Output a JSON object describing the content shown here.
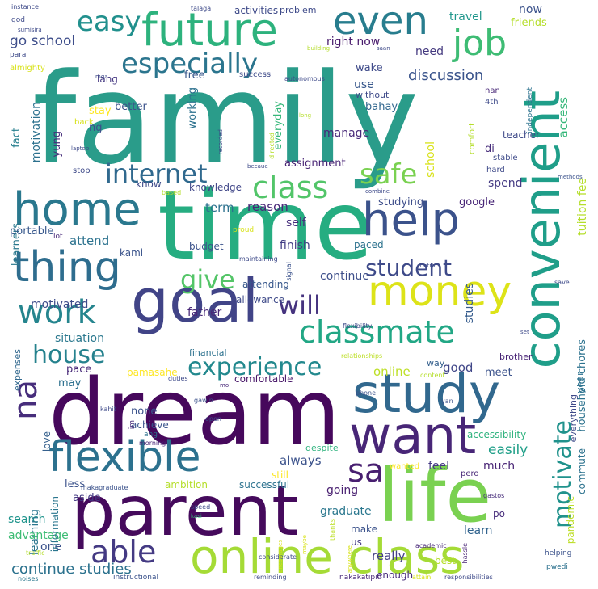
{
  "words": [
    {
      "text": "family",
      "color": "#2a9c8a"
    },
    {
      "text": "time",
      "color": "#26ad81"
    },
    {
      "text": "dream",
      "color": "#46085c"
    },
    {
      "text": "parent",
      "color": "#450a5c"
    },
    {
      "text": "life",
      "color": "#7ad151"
    },
    {
      "text": "goal",
      "color": "#414487"
    },
    {
      "text": "online class",
      "color": "#a5db36"
    },
    {
      "text": "study",
      "color": "#31688e"
    },
    {
      "text": "convenient",
      "color": "#1f9e89"
    },
    {
      "text": "want",
      "color": "#482677"
    },
    {
      "text": "flexible",
      "color": "#2c718e"
    },
    {
      "text": "future",
      "color": "#2db27d"
    },
    {
      "text": "home",
      "color": "#2a788e"
    },
    {
      "text": "help",
      "color": "#3b528b"
    },
    {
      "text": "thing",
      "color": "#2e6d8e"
    },
    {
      "text": "money",
      "color": "#dde318"
    },
    {
      "text": "even",
      "color": "#287d8e"
    },
    {
      "text": "classmate",
      "color": "#22a785"
    },
    {
      "text": "work",
      "color": "#25858e"
    },
    {
      "text": "job",
      "color": "#3ebc74"
    },
    {
      "text": "sa",
      "color": "#481f70"
    },
    {
      "text": "na",
      "color": "#472d7b"
    },
    {
      "text": "able",
      "color": "#443a83"
    },
    {
      "text": "especially",
      "color": "#2b758e"
    },
    {
      "text": "internet",
      "color": "#30698e"
    },
    {
      "text": "safe",
      "color": "#7ad151"
    },
    {
      "text": "class",
      "color": "#52c569"
    },
    {
      "text": "easy",
      "color": "#21908d"
    },
    {
      "text": "house",
      "color": "#26828e"
    },
    {
      "text": "experience",
      "color": "#23898e"
    },
    {
      "text": "motivate",
      "color": "#20928c"
    },
    {
      "text": "student",
      "color": "#3e4a89"
    },
    {
      "text": "give",
      "color": "#54c568"
    },
    {
      "text": "will",
      "color": "#46337f"
    },
    {
      "text": "continue studies",
      "color": "#2c728e"
    },
    {
      "text": "discussion",
      "color": "#3a548c"
    },
    {
      "text": "go school",
      "color": "#3d4d8a"
    },
    {
      "text": "travel",
      "color": "#1f968b"
    },
    {
      "text": "friends",
      "color": "#b5de2b"
    },
    {
      "text": "right now",
      "color": "#481a6c"
    },
    {
      "text": "need",
      "color": "#44397f"
    },
    {
      "text": "now",
      "color": "#3b528b"
    },
    {
      "text": "access",
      "color": "#35b779"
    },
    {
      "text": "manage",
      "color": "#482979"
    },
    {
      "text": "household chores",
      "color": "#2c728e"
    },
    {
      "text": "tuition fee",
      "color": "#b5de2b"
    },
    {
      "text": "easily",
      "color": "#1f9f88"
    },
    {
      "text": "really",
      "color": "#433e85"
    },
    {
      "text": "search",
      "color": "#1f948c"
    },
    {
      "text": "learning",
      "color": "#2a768e"
    },
    {
      "text": "always",
      "color": "#3b528b"
    },
    {
      "text": "attend",
      "color": "#2c728e"
    },
    {
      "text": "motivated",
      "color": "#3e4c8a"
    },
    {
      "text": "situation",
      "color": "#2a788e"
    },
    {
      "text": "term",
      "color": "#2c718e"
    },
    {
      "text": "reason",
      "color": "#482878"
    },
    {
      "text": "online",
      "color": "#bddf26"
    },
    {
      "text": "good",
      "color": "#404688"
    },
    {
      "text": "advantage",
      "color": "#3dbc74"
    },
    {
      "text": "graduate",
      "color": "#2a778e"
    },
    {
      "text": "learn",
      "color": "#32648e"
    },
    {
      "text": "one",
      "color": "#3b528b"
    },
    {
      "text": "going",
      "color": "#481f70"
    },
    {
      "text": "feel",
      "color": "#443983"
    },
    {
      "text": "much",
      "color": "#482475"
    },
    {
      "text": "studies",
      "color": "#365c8d"
    },
    {
      "text": "school",
      "color": "#d8e219"
    },
    {
      "text": "finish",
      "color": "#433e85"
    },
    {
      "text": "father",
      "color": "#482878"
    },
    {
      "text": "continue",
      "color": "#3d4e8a"
    },
    {
      "text": "spend",
      "color": "#443a83"
    },
    {
      "text": "google",
      "color": "#482677"
    },
    {
      "text": "studying",
      "color": "#3d4d8a"
    },
    {
      "text": "self",
      "color": "#472f7d"
    },
    {
      "text": "use",
      "color": "#38588c"
    },
    {
      "text": "bahay",
      "color": "#31678e"
    },
    {
      "text": "wake",
      "color": "#3e4a89"
    },
    {
      "text": "free",
      "color": "#38588c"
    },
    {
      "text": "lang",
      "color": "#453882"
    },
    {
      "text": "ng",
      "color": "#3d4e8a"
    },
    {
      "text": "yung",
      "color": "#472d7b"
    },
    {
      "text": "stay",
      "color": "#fde725"
    },
    {
      "text": "better",
      "color": "#3b528b"
    },
    {
      "text": "working",
      "color": "#2c718e"
    },
    {
      "text": "everyday",
      "color": "#35b779"
    },
    {
      "text": "assignment",
      "color": "#482475"
    },
    {
      "text": "knowledge",
      "color": "#404688"
    },
    {
      "text": "know",
      "color": "#3e4a89"
    },
    {
      "text": "motivation",
      "color": "#2c718e"
    },
    {
      "text": "fact",
      "color": "#277f8e"
    },
    {
      "text": "learners",
      "color": "#2a788e"
    },
    {
      "text": "portable",
      "color": "#38588c"
    },
    {
      "text": "kami",
      "color": "#3a538b"
    },
    {
      "text": "budget",
      "color": "#3b528b"
    },
    {
      "text": "paced",
      "color": "#2c728e"
    },
    {
      "text": "attending",
      "color": "#38588c"
    },
    {
      "text": "allowance",
      "color": "#3e4a89"
    },
    {
      "text": "expenses",
      "color": "#31688e"
    },
    {
      "text": "pace",
      "color": "#482878"
    },
    {
      "text": "may",
      "color": "#2d708e"
    },
    {
      "text": "love",
      "color": "#35608d"
    },
    {
      "text": "information",
      "color": "#2a768e"
    },
    {
      "text": "less",
      "color": "#3b528b"
    },
    {
      "text": "aside",
      "color": "#443983"
    },
    {
      "text": "successful",
      "color": "#2c728e"
    },
    {
      "text": "still",
      "color": "#fde725"
    },
    {
      "text": "ambition",
      "color": "#b5de2b"
    },
    {
      "text": "none",
      "color": "#3b528b"
    },
    {
      "text": "achieve",
      "color": "#3a548c"
    },
    {
      "text": "comfortable",
      "color": "#481769"
    },
    {
      "text": "pamasahe",
      "color": "#fde725"
    },
    {
      "text": "financial",
      "color": "#2c718e"
    },
    {
      "text": "meet",
      "color": "#3b528b"
    },
    {
      "text": "year",
      "color": "#2c718e"
    },
    {
      "text": "commute",
      "color": "#2c728e"
    },
    {
      "text": "accessibility",
      "color": "#2db27d"
    },
    {
      "text": "pandemic",
      "color": "#bddf26"
    },
    {
      "text": "po",
      "color": "#472d7b"
    },
    {
      "text": "way",
      "color": "#35608d"
    },
    {
      "text": "brother",
      "color": "#482475"
    },
    {
      "text": "everything",
      "color": "#3e4a89"
    },
    {
      "text": "make",
      "color": "#3b528b"
    },
    {
      "text": "us",
      "color": "#443983"
    },
    {
      "text": "best",
      "color": "#b5de2b"
    },
    {
      "text": "enough",
      "color": "#472d7b"
    },
    {
      "text": "despite",
      "color": "#2db27d"
    },
    {
      "text": "wanted",
      "color": "#fde725"
    },
    {
      "text": "pero",
      "color": "#482878"
    },
    {
      "text": "thanks",
      "color": "#bddf26"
    },
    {
      "text": "gastos",
      "color": "#472d7b"
    },
    {
      "text": "hassle",
      "color": "#482475"
    },
    {
      "text": "helping",
      "color": "#3b528b"
    },
    {
      "text": "pwedi",
      "color": "#2c718e"
    },
    {
      "text": "attain",
      "color": "#d8e219"
    },
    {
      "text": "responsibilities",
      "color": "#3e4a89"
    },
    {
      "text": "nakakatipid",
      "color": "#482878"
    },
    {
      "text": "reminding",
      "color": "#3e4a89"
    },
    {
      "text": "instructional",
      "color": "#3b528b"
    },
    {
      "text": "noises",
      "color": "#2a788e"
    },
    {
      "text": "traffic",
      "color": "#b5de2b"
    },
    {
      "text": "considerate",
      "color": "#3e4a89"
    },
    {
      "text": "academic",
      "color": "#482878"
    },
    {
      "text": "anywhere",
      "color": "#d8e219"
    },
    {
      "text": "maybe",
      "color": "#d8e219"
    },
    {
      "text": "encourages",
      "color": "#d8e219"
    },
    {
      "text": "speed",
      "color": "#3e4a89"
    },
    {
      "text": "kasi",
      "color": "#35b779"
    },
    {
      "text": "makagraduate",
      "color": "#3b528b"
    },
    {
      "text": "morning",
      "color": "#482475"
    },
    {
      "text": "ang",
      "color": "#2c728e"
    },
    {
      "text": "im",
      "color": "#472d7b"
    },
    {
      "text": "open",
      "color": "#3e4a89"
    },
    {
      "text": "gawin",
      "color": "#3b528b"
    },
    {
      "text": "kahit",
      "color": "#3e4a89"
    },
    {
      "text": "yan",
      "color": "#3b528b"
    },
    {
      "text": "duties",
      "color": "#3e4a89"
    },
    {
      "text": "mo",
      "color": "#482878"
    },
    {
      "text": "phone",
      "color": "#3b528b"
    },
    {
      "text": "content",
      "color": "#b5de2b"
    },
    {
      "text": "relationships",
      "color": "#bddf26"
    },
    {
      "text": "set",
      "color": "#3e4a89"
    },
    {
      "text": "flexibility",
      "color": "#3e4a89"
    },
    {
      "text": "signal",
      "color": "#3b528b"
    },
    {
      "text": "control",
      "color": "#3e4a89"
    },
    {
      "text": "save",
      "color": "#3e4a89"
    },
    {
      "text": "maintaining",
      "color": "#3e4a89"
    },
    {
      "text": "proud",
      "color": "#d8e219"
    },
    {
      "text": "lot",
      "color": "#482878"
    },
    {
      "text": "based",
      "color": "#b5de2b"
    },
    {
      "text": "becaue",
      "color": "#3e4a89"
    },
    {
      "text": "combine",
      "color": "#3e4a89"
    },
    {
      "text": "methods",
      "color": "#3b528b"
    },
    {
      "text": "hard",
      "color": "#3e4a89"
    },
    {
      "text": "stable",
      "color": "#3e4a89"
    },
    {
      "text": "di",
      "color": "#472d7b"
    },
    {
      "text": "teacher",
      "color": "#3e4a89"
    },
    {
      "text": "comfort",
      "color": "#b5de2b"
    },
    {
      "text": "independent",
      "color": "#2c728e"
    },
    {
      "text": "directed",
      "color": "#b5de2b"
    },
    {
      "text": "recorded",
      "color": "#3e4a89"
    },
    {
      "text": "laptop",
      "color": "#3e4a89"
    },
    {
      "text": "stop",
      "color": "#3e4a89"
    },
    {
      "text": "back",
      "color": "#d8e219"
    },
    {
      "text": "long",
      "color": "#b5de2b"
    },
    {
      "text": "4th",
      "color": "#3e4a89"
    },
    {
      "text": "nan",
      "color": "#482878"
    },
    {
      "text": "without",
      "color": "#3e4a89"
    },
    {
      "text": "success",
      "color": "#3e4a89"
    },
    {
      "text": "autonomous",
      "color": "#3e4a89"
    },
    {
      "text": "mga",
      "color": "#3e4a89"
    },
    {
      "text": "almighty",
      "color": "#d8e219"
    },
    {
      "text": "para",
      "color": "#3e4a89"
    },
    {
      "text": "god",
      "color": "#3e4a89"
    },
    {
      "text": "instance",
      "color": "#3e4a89"
    },
    {
      "text": "sumisira",
      "color": "#3e4a89"
    },
    {
      "text": "talaga",
      "color": "#3e4a89"
    },
    {
      "text": "activities",
      "color": "#3e4a89"
    },
    {
      "text": "problem",
      "color": "#3e4a89"
    },
    {
      "text": "building",
      "color": "#b5de2b"
    },
    {
      "text": "saan",
      "color": "#3e4a89"
    }
  ]
}
